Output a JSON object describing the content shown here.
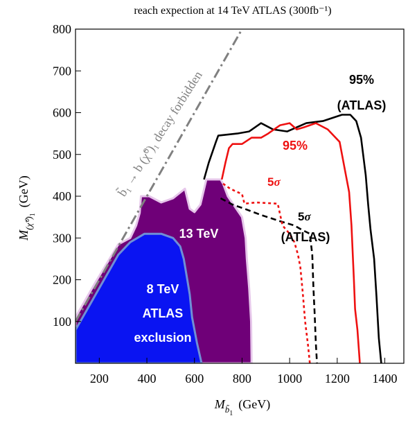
{
  "chart_data": {
    "type": "area",
    "title": "reach expection at 14 TeV ATLAS (300fb⁻¹)",
    "xlabel_main": "M",
    "xlabel_sub": "b̃",
    "xlabel_subsub": "1",
    "xlabel_unit": "(GeV)",
    "ylabel_main": "M",
    "ylabel_sub": "(χ̃⁰)",
    "ylabel_subsub": "1",
    "ylabel_unit": "(GeV)",
    "xlim": [
      100,
      1480
    ],
    "ylim": [
      0,
      800
    ],
    "x_ticks": [
      200,
      400,
      600,
      800,
      1000,
      1200,
      1400
    ],
    "y_ticks": [
      100,
      200,
      300,
      400,
      500,
      600,
      700,
      800
    ],
    "grid": false,
    "colors": {
      "atlas8": "#0a14f2",
      "atlas8_edge": "#6f8fd6",
      "tev13": "#6f0078",
      "tev13_edge": "#e6c6ea",
      "atlas_line": "#000000",
      "our_line": "#ee1111",
      "forbidden": "#808080"
    },
    "series": [
      {
        "key": "tev13",
        "type": "area",
        "points": [
          [
            100,
            110
          ],
          [
            180,
            190
          ],
          [
            280,
            285
          ],
          [
            330,
            300
          ],
          [
            355,
            330
          ],
          [
            370,
            360
          ],
          [
            375,
            400
          ],
          [
            410,
            400
          ],
          [
            460,
            385
          ],
          [
            510,
            395
          ],
          [
            560,
            418
          ],
          [
            580,
            370
          ],
          [
            600,
            362
          ],
          [
            625,
            380
          ],
          [
            650,
            440
          ],
          [
            690,
            440
          ],
          [
            710,
            440
          ],
          [
            720,
            430
          ],
          [
            740,
            400
          ],
          [
            770,
            375
          ],
          [
            800,
            350
          ],
          [
            815,
            300
          ],
          [
            820,
            250
          ],
          [
            830,
            180
          ],
          [
            838,
            100
          ],
          [
            840,
            0
          ],
          [
            100,
            0
          ]
        ]
      },
      {
        "key": "atlas8",
        "type": "area",
        "points": [
          [
            100,
            80
          ],
          [
            150,
            130
          ],
          [
            220,
            200
          ],
          [
            280,
            260
          ],
          [
            330,
            290
          ],
          [
            390,
            310
          ],
          [
            460,
            310
          ],
          [
            510,
            300
          ],
          [
            540,
            280
          ],
          [
            555,
            250
          ],
          [
            570,
            200
          ],
          [
            580,
            165
          ],
          [
            590,
            110
          ],
          [
            610,
            50
          ],
          [
            630,
            0
          ],
          [
            100,
            0
          ]
        ]
      },
      {
        "key": "atlas95",
        "type": "line",
        "points": [
          [
            640,
            440
          ],
          [
            660,
            480
          ],
          [
            690,
            530
          ],
          [
            700,
            545
          ],
          [
            780,
            550
          ],
          [
            830,
            555
          ],
          [
            880,
            575
          ],
          [
            930,
            560
          ],
          [
            990,
            555
          ],
          [
            1070,
            575
          ],
          [
            1140,
            580
          ],
          [
            1220,
            595
          ],
          [
            1255,
            595
          ],
          [
            1280,
            580
          ],
          [
            1300,
            540
          ],
          [
            1320,
            450
          ],
          [
            1330,
            380
          ],
          [
            1340,
            320
          ],
          [
            1355,
            250
          ],
          [
            1365,
            160
          ],
          [
            1375,
            60
          ],
          [
            1385,
            0
          ]
        ]
      },
      {
        "key": "our95",
        "type": "line",
        "points": [
          [
            715,
            440
          ],
          [
            730,
            480
          ],
          [
            745,
            515
          ],
          [
            760,
            525
          ],
          [
            800,
            525
          ],
          [
            840,
            540
          ],
          [
            880,
            540
          ],
          [
            910,
            550
          ],
          [
            960,
            570
          ],
          [
            1000,
            575
          ],
          [
            1030,
            560
          ],
          [
            1060,
            565
          ],
          [
            1110,
            575
          ],
          [
            1160,
            560
          ],
          [
            1210,
            530
          ],
          [
            1230,
            470
          ],
          [
            1250,
            410
          ],
          [
            1260,
            330
          ],
          [
            1270,
            200
          ],
          [
            1275,
            130
          ],
          [
            1285,
            80
          ],
          [
            1295,
            0
          ]
        ]
      },
      {
        "key": "atlas5s",
        "type": "line",
        "dashed": true,
        "points": [
          [
            710,
            395
          ],
          [
            760,
            380
          ],
          [
            810,
            370
          ],
          [
            880,
            355
          ],
          [
            960,
            340
          ],
          [
            1020,
            330
          ],
          [
            1050,
            320
          ],
          [
            1085,
            310
          ],
          [
            1095,
            260
          ],
          [
            1100,
            180
          ],
          [
            1105,
            120
          ],
          [
            1110,
            50
          ],
          [
            1115,
            0
          ]
        ]
      },
      {
        "key": "our5s",
        "type": "line",
        "dashed": true,
        "points": [
          [
            720,
            430
          ],
          [
            750,
            418
          ],
          [
            800,
            405
          ],
          [
            810,
            382
          ],
          [
            860,
            385
          ],
          [
            920,
            383
          ],
          [
            950,
            382
          ],
          [
            970,
            330
          ],
          [
            1000,
            310
          ],
          [
            1020,
            290
          ],
          [
            1035,
            260
          ],
          [
            1045,
            230
          ],
          [
            1055,
            170
          ],
          [
            1065,
            100
          ],
          [
            1078,
            40
          ],
          [
            1085,
            0
          ]
        ]
      },
      {
        "key": "forbidden",
        "type": "line",
        "dashdot": true,
        "points": [
          [
            100,
            100
          ],
          [
            900,
            900
          ]
        ]
      }
    ],
    "annotations": {
      "tev13": "13 TeV",
      "atlas8_line1": "8 TeV",
      "atlas8_line2": "ATLAS",
      "atlas8_line3": "exclusion",
      "atlas95_line1": "95%",
      "atlas95_line2": "(ATLAS)",
      "our95": "95%",
      "our5s_num": "5",
      "our5s_sym": "σ",
      "atlas5s_num": "5",
      "atlas5s_sym": "σ",
      "atlas5s_line2": "(ATLAS)",
      "forbidden": "b̃₁ → b (χ̃⁰)₁ decay forbidden"
    }
  }
}
